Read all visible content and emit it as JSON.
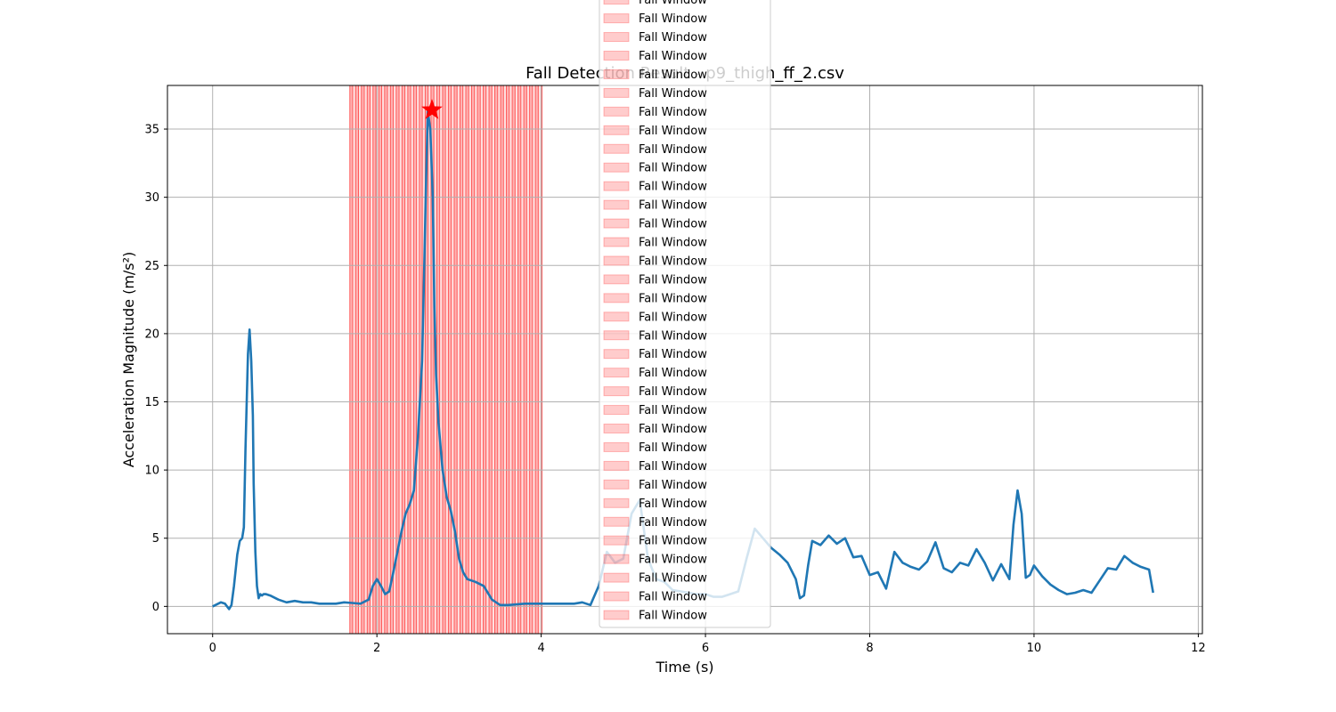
{
  "chart_data": {
    "type": "line",
    "title": "Fall Detection Result - p9_thigh_ff_2.csv",
    "xlabel": "Time (s)",
    "ylabel": "Acceleration Magnitude (m/s²)",
    "xlim": [
      -0.55,
      12.05
    ],
    "ylim": [
      -2.0,
      38.2
    ],
    "xticks": [
      0,
      2,
      4,
      6,
      8,
      10,
      12
    ],
    "yticks": [
      0,
      5,
      10,
      15,
      20,
      25,
      30,
      35
    ],
    "grid": true,
    "legend_position": "upper-center",
    "series": [
      {
        "color": "#1f77b4",
        "x": [
          0.0,
          0.1,
          0.15,
          0.2,
          0.23,
          0.26,
          0.3,
          0.33,
          0.36,
          0.38,
          0.4,
          0.43,
          0.45,
          0.47,
          0.49,
          0.5,
          0.52,
          0.54,
          0.56,
          0.58,
          0.6,
          0.62,
          0.65,
          0.7,
          0.8,
          0.9,
          1.0,
          1.1,
          1.2,
          1.3,
          1.5,
          1.6,
          1.7,
          1.8,
          1.9,
          1.95,
          2.0,
          2.05,
          2.1,
          2.15,
          2.2,
          2.25,
          2.3,
          2.35,
          2.4,
          2.45,
          2.5,
          2.55,
          2.58,
          2.6,
          2.62,
          2.65,
          2.68,
          2.7,
          2.72,
          2.75,
          2.8,
          2.85,
          2.9,
          2.95,
          3.0,
          3.05,
          3.1,
          3.2,
          3.3,
          3.4,
          3.5,
          3.6,
          3.8,
          4.0,
          4.2,
          4.4,
          4.5,
          4.6,
          4.7,
          4.8,
          4.9,
          5.0,
          5.1,
          5.2,
          5.3,
          5.4,
          5.5,
          5.6,
          5.7,
          5.8,
          5.9,
          6.0,
          6.1,
          6.2,
          6.3,
          6.4,
          6.5,
          6.6,
          6.7,
          6.8,
          6.9,
          7.0,
          7.1,
          7.15,
          7.2,
          7.25,
          7.3,
          7.4,
          7.5,
          7.6,
          7.7,
          7.8,
          7.9,
          8.0,
          8.1,
          8.2,
          8.3,
          8.4,
          8.5,
          8.6,
          8.7,
          8.8,
          8.9,
          9.0,
          9.1,
          9.2,
          9.3,
          9.4,
          9.5,
          9.6,
          9.7,
          9.75,
          9.8,
          9.85,
          9.9,
          9.95,
          10.0,
          10.1,
          10.2,
          10.3,
          10.4,
          10.5,
          10.6,
          10.7,
          10.8,
          10.9,
          11.0,
          11.1,
          11.2,
          11.3,
          11.4,
          11.45
        ],
        "y": [
          0.0,
          0.3,
          0.2,
          -0.2,
          0.1,
          1.5,
          3.8,
          4.8,
          5.0,
          5.8,
          11.5,
          18.5,
          20.3,
          18.0,
          14.0,
          9.0,
          4.0,
          1.5,
          0.6,
          0.9,
          0.8,
          0.9,
          0.9,
          0.8,
          0.5,
          0.3,
          0.4,
          0.3,
          0.3,
          0.2,
          0.2,
          0.3,
          0.25,
          0.2,
          0.5,
          1.5,
          2.0,
          1.5,
          0.9,
          1.1,
          2.5,
          4.0,
          5.5,
          6.8,
          7.5,
          8.5,
          12.5,
          18.0,
          26.0,
          31.5,
          36.3,
          35.0,
          30.0,
          22.0,
          17.0,
          13.5,
          10.0,
          8.0,
          7.0,
          5.5,
          3.5,
          2.5,
          2.0,
          1.8,
          1.5,
          0.5,
          0.1,
          0.1,
          0.2,
          0.2,
          0.2,
          0.2,
          0.3,
          0.1,
          1.5,
          4.0,
          3.2,
          3.5,
          6.8,
          7.8,
          3.5,
          2.0,
          1.8,
          1.2,
          1.1,
          1.0,
          0.9,
          0.9,
          0.7,
          0.7,
          0.9,
          1.1,
          3.5,
          5.7,
          5.0,
          4.3,
          3.8,
          3.2,
          2.0,
          0.6,
          0.8,
          3.0,
          4.8,
          4.5,
          5.2,
          4.6,
          5.0,
          3.6,
          3.7,
          2.3,
          2.5,
          1.3,
          4.0,
          3.2,
          2.9,
          2.7,
          3.3,
          4.7,
          2.8,
          2.5,
          3.2,
          3.0,
          4.2,
          3.2,
          1.9,
          3.1,
          2.0,
          6.0,
          8.5,
          6.8,
          2.1,
          2.3,
          3.0,
          2.2,
          1.6,
          1.2,
          0.9,
          1.0,
          1.2,
          1.0,
          1.9,
          2.8,
          2.7,
          3.7,
          3.2,
          2.9,
          2.7,
          1.0
        ]
      }
    ],
    "fall_windows": {
      "label": "Fall Window",
      "color": "#ff0000",
      "alpha": 0.2,
      "count": 34,
      "start": 1.67,
      "end": 4.0
    },
    "peak": {
      "x": 2.67,
      "y": 36.4,
      "color": "#ff0000",
      "marker": "star"
    }
  }
}
